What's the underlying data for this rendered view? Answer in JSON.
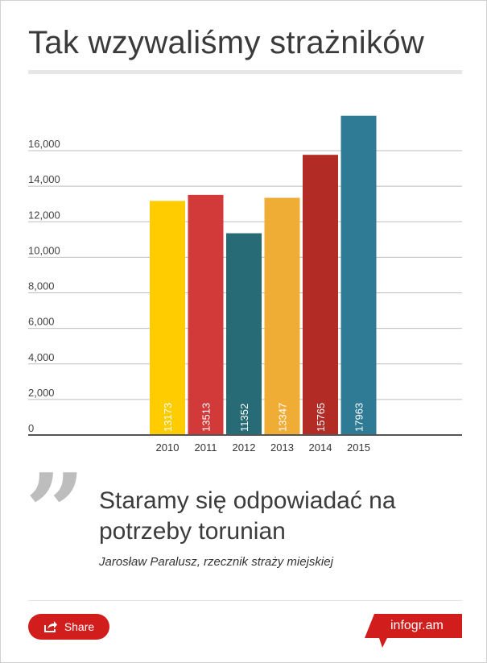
{
  "header": {
    "title": "Tak wzywaliśmy strażników"
  },
  "chart_data": {
    "type": "bar",
    "categories": [
      "2010",
      "2011",
      "2012",
      "2013",
      "2014",
      "2015"
    ],
    "values": [
      13173,
      13513,
      11352,
      13347,
      15765,
      17963
    ],
    "value_labels": [
      "13173",
      "13513",
      "11352",
      "13347",
      "15765",
      "17963"
    ],
    "bar_colors": [
      "#ffcc00",
      "#d23a3a",
      "#276b77",
      "#f0ad35",
      "#b32b25",
      "#2f7b95"
    ],
    "y_ticks": [
      0,
      2000,
      4000,
      6000,
      8000,
      10000,
      12000,
      14000,
      16000
    ],
    "y_tick_labels": [
      "0",
      "2,000",
      "4,000",
      "6,000",
      "8,000",
      "10,000",
      "12,000",
      "14,000",
      "16,000"
    ],
    "ylim": [
      0,
      16000
    ],
    "grid": true,
    "title": "",
    "xlabel": "",
    "ylabel": ""
  },
  "quote": {
    "mark": "”",
    "text": "Staramy się odpowiadać na potrzeby torunian",
    "author": "Jarosław Paralusz, rzecznik straży miejskiej"
  },
  "footer": {
    "share_label": "Share",
    "share_icon": "share-icon",
    "brand_label": "infogr.am",
    "accent_color": "#d21d1d"
  }
}
